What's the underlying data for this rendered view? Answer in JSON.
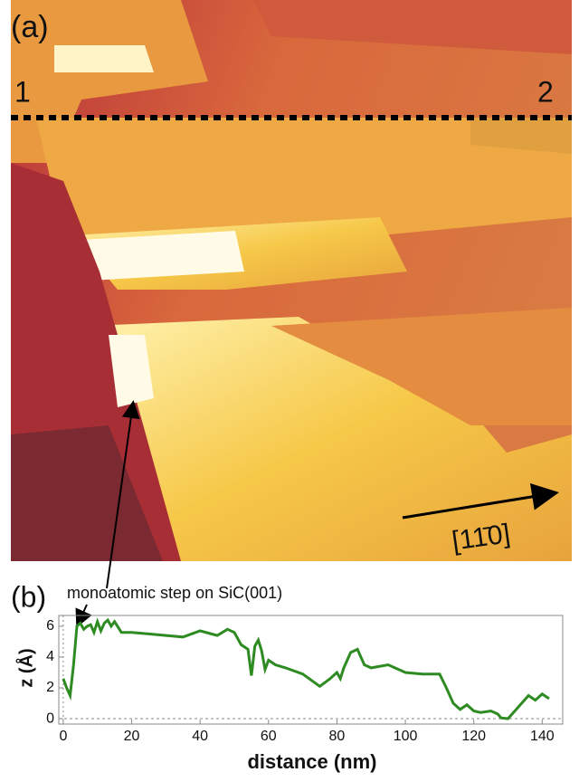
{
  "image_panel": {
    "panel_label": "(a)",
    "marker_start": "1",
    "marker_end": "2",
    "direction": "[11̄0]"
  },
  "chart_data": {
    "type": "line",
    "panel_label": "(b)",
    "annotation": "monoatomic step on SiC(001)",
    "x_label": "distance (nm)",
    "y_label": "z (Å)",
    "x": [
      0,
      1,
      2,
      3,
      4,
      5,
      6,
      7,
      8,
      9,
      10,
      11,
      12,
      13,
      14,
      15,
      17,
      20,
      25,
      30,
      35,
      40,
      45,
      48,
      50,
      52,
      54,
      55,
      56,
      57,
      58,
      59,
      60,
      62,
      65,
      70,
      75,
      78,
      80,
      81,
      82,
      84,
      86,
      88,
      90,
      95,
      100,
      105,
      110,
      112,
      114,
      116,
      118,
      120,
      122,
      125,
      127,
      128,
      130,
      132,
      134,
      136,
      138,
      140,
      142
    ],
    "series": [
      {
        "color": "#2e8b22",
        "values": [
          2.6,
          2.0,
          1.5,
          3.5,
          6.0,
          6.2,
          5.8,
          6.0,
          6.1,
          5.6,
          6.3,
          5.7,
          6.2,
          6.4,
          6.0,
          6.3,
          5.6,
          5.6,
          5.5,
          5.4,
          5.3,
          5.7,
          5.4,
          5.8,
          5.6,
          4.8,
          4.5,
          2.8,
          4.7,
          5.1,
          4.4,
          3.2,
          3.8,
          3.5,
          3.3,
          2.9,
          2.1,
          2.6,
          3.0,
          2.6,
          3.3,
          4.3,
          4.5,
          3.5,
          3.3,
          3.5,
          3.0,
          2.9,
          2.9,
          2.0,
          1.0,
          0.6,
          0.9,
          0.5,
          0.4,
          0.5,
          0.3,
          0.05,
          0,
          0.5,
          1.0,
          1.5,
          1.2,
          1.6,
          1.3
        ]
      }
    ],
    "xlim": [
      -1.3,
      146
    ],
    "ylim": [
      -0.35,
      6.7
    ],
    "xticks": [
      0,
      20,
      40,
      60,
      80,
      100,
      120,
      140
    ],
    "yticks": [
      0,
      2,
      4,
      6
    ]
  }
}
